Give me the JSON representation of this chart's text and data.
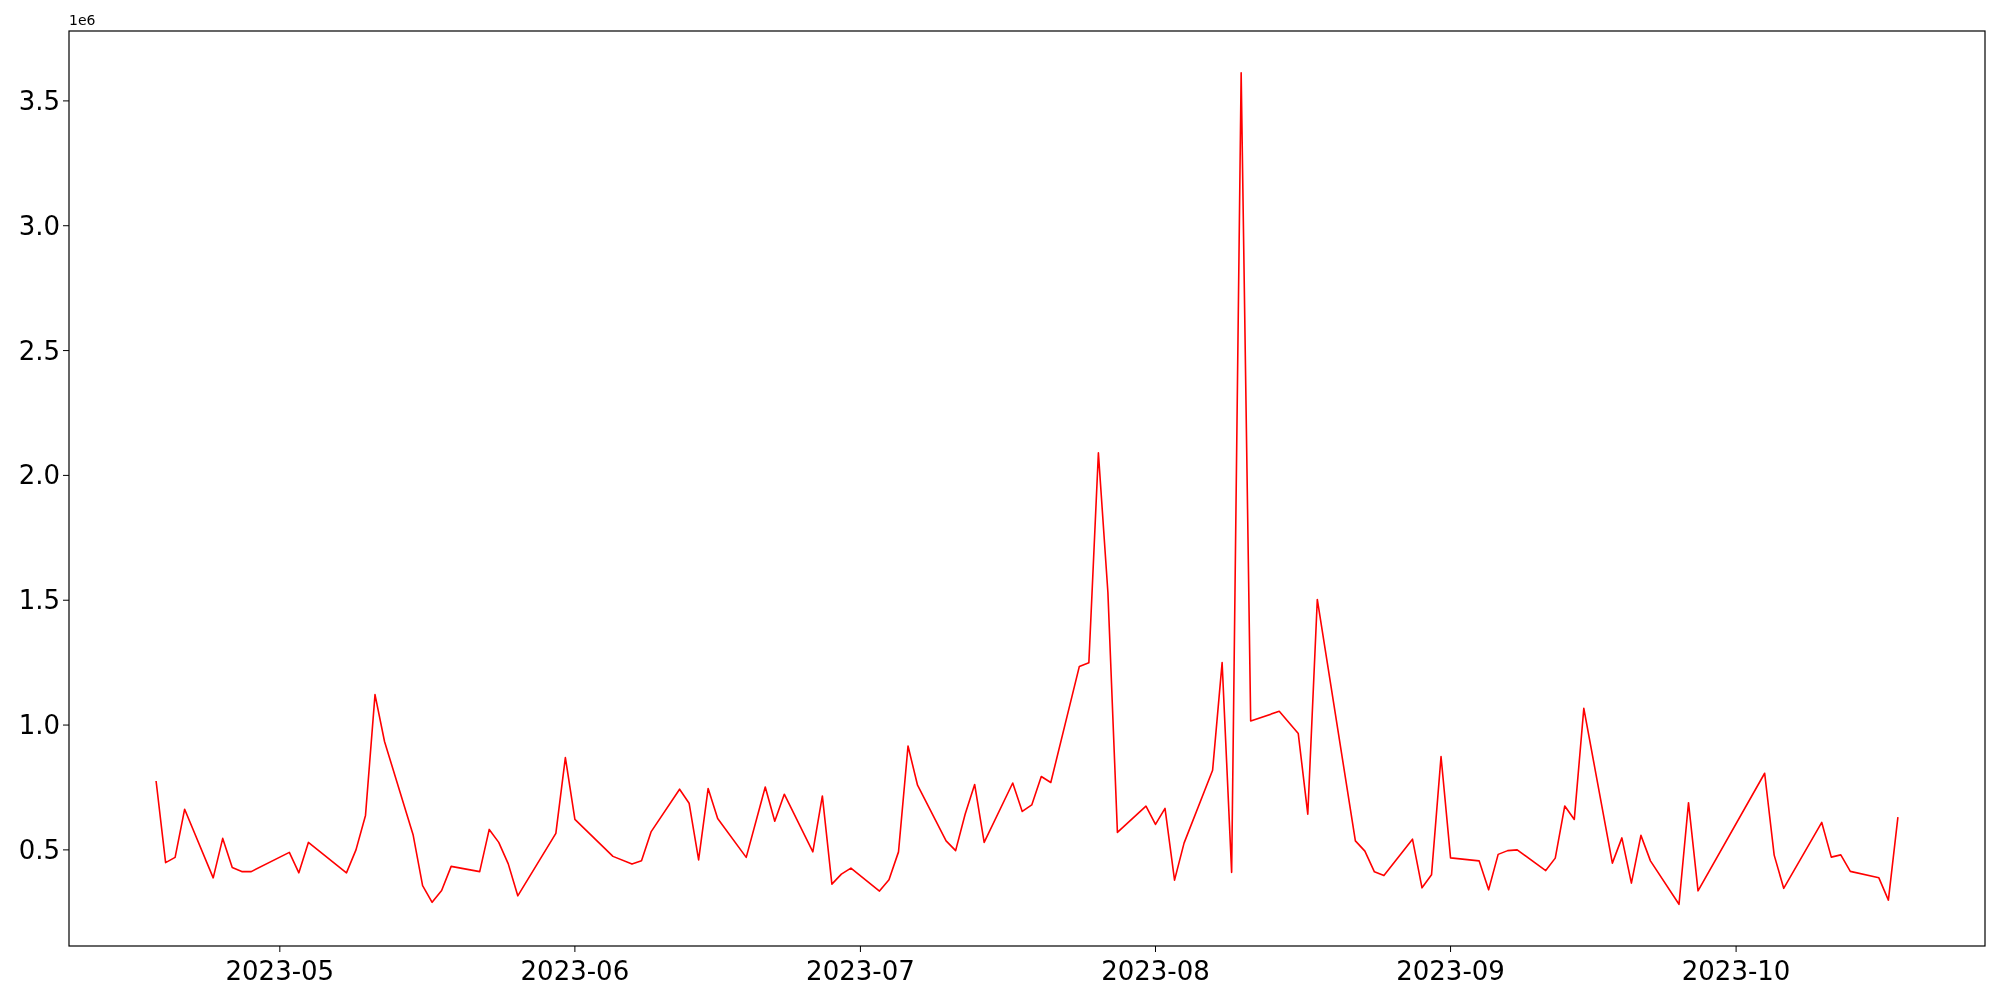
{
  "chart_data": {
    "type": "line",
    "annotations": [
      "1e6"
    ],
    "grid": false,
    "x": [
      "2023-04-18",
      "2023-04-19",
      "2023-04-20",
      "2023-04-21",
      "2023-04-24",
      "2023-04-25",
      "2023-04-26",
      "2023-04-27",
      "2023-04-28",
      "2023-05-02",
      "2023-05-03",
      "2023-05-04",
      "2023-05-08",
      "2023-05-09",
      "2023-05-10",
      "2023-05-11",
      "2023-05-12",
      "2023-05-15",
      "2023-05-16",
      "2023-05-17",
      "2023-05-18",
      "2023-05-19",
      "2023-05-22",
      "2023-05-23",
      "2023-05-24",
      "2023-05-25",
      "2023-05-26",
      "2023-05-30",
      "2023-05-31",
      "2023-06-01",
      "2023-06-05",
      "2023-06-07",
      "2023-06-08",
      "2023-06-09",
      "2023-06-12",
      "2023-06-13",
      "2023-06-14",
      "2023-06-15",
      "2023-06-16",
      "2023-06-19",
      "2023-06-21",
      "2023-06-22",
      "2023-06-23",
      "2023-06-26",
      "2023-06-27",
      "2023-06-28",
      "2023-06-29",
      "2023-06-30",
      "2023-07-03",
      "2023-07-04",
      "2023-07-05",
      "2023-07-06",
      "2023-07-07",
      "2023-07-10",
      "2023-07-11",
      "2023-07-12",
      "2023-07-13",
      "2023-07-14",
      "2023-07-17",
      "2023-07-18",
      "2023-07-19",
      "2023-07-20",
      "2023-07-21",
      "2023-07-24",
      "2023-07-25",
      "2023-07-26",
      "2023-07-27",
      "2023-07-28",
      "2023-07-31",
      "2023-08-01",
      "2023-08-02",
      "2023-08-03",
      "2023-08-04",
      "2023-08-07",
      "2023-08-08",
      "2023-08-09",
      "2023-08-10",
      "2023-08-11",
      "2023-08-14",
      "2023-08-16",
      "2023-08-17",
      "2023-08-18",
      "2023-08-22",
      "2023-08-23",
      "2023-08-24",
      "2023-08-25",
      "2023-08-28",
      "2023-08-29",
      "2023-08-30",
      "2023-08-31",
      "2023-09-01",
      "2023-09-04",
      "2023-09-05",
      "2023-09-06",
      "2023-09-07",
      "2023-09-08",
      "2023-09-11",
      "2023-09-12",
      "2023-09-13",
      "2023-09-14",
      "2023-09-15",
      "2023-09-18",
      "2023-09-19",
      "2023-09-20",
      "2023-09-21",
      "2023-09-22",
      "2023-09-25",
      "2023-09-26",
      "2023-09-27",
      "2023-10-04",
      "2023-10-05",
      "2023-10-06",
      "2023-10-10",
      "2023-10-11",
      "2023-10-12",
      "2023-10-13",
      "2023-10-16",
      "2023-10-17",
      "2023-10-18"
    ],
    "series": [
      {
        "color": "#ff0000",
        "values": [
          0.776,
          0.449,
          0.47,
          0.663,
          0.388,
          0.546,
          0.429,
          0.413,
          0.413,
          0.49,
          0.408,
          0.53,
          0.408,
          0.5,
          0.638,
          1.122,
          0.934,
          0.561,
          0.357,
          0.29,
          0.337,
          0.434,
          0.413,
          0.582,
          0.53,
          0.444,
          0.316,
          0.566,
          0.87,
          0.622,
          0.474,
          0.443,
          0.456,
          0.572,
          0.743,
          0.687,
          0.46,
          0.746,
          0.626,
          0.47,
          0.752,
          0.615,
          0.723,
          0.492,
          0.716,
          0.363,
          0.403,
          0.427,
          0.335,
          0.38,
          0.492,
          0.916,
          0.759,
          0.536,
          0.497,
          0.643,
          0.762,
          0.53,
          0.768,
          0.654,
          0.68,
          0.794,
          0.77,
          1.235,
          1.25,
          2.09,
          1.531,
          0.57,
          0.675,
          0.602,
          0.666,
          0.379,
          0.527,
          0.819,
          1.25,
          0.41,
          3.613,
          1.016,
          1.055,
          0.966,
          0.643,
          1.503,
          0.536,
          0.495,
          0.412,
          0.397,
          0.543,
          0.348,
          0.4,
          0.874,
          0.468,
          0.456,
          0.34,
          0.482,
          0.497,
          0.5,
          0.417,
          0.467,
          0.676,
          0.622,
          1.067,
          0.447,
          0.548,
          0.367,
          0.558,
          0.456,
          0.282,
          0.689,
          0.336,
          0.807,
          0.479,
          0.346,
          0.61,
          0.471,
          0.48,
          0.414,
          0.388,
          0.299,
          0.631
        ]
      }
    ],
    "xlim": [
      "2023-04-08T20:24",
      "2023-10-27T03:36"
    ],
    "xticks": [
      {
        "value": "2023-05-01",
        "label": "2023-05"
      },
      {
        "value": "2023-06-01",
        "label": "2023-06"
      },
      {
        "value": "2023-07-01",
        "label": "2023-07"
      },
      {
        "value": "2023-08-01",
        "label": "2023-08"
      },
      {
        "value": "2023-09-01",
        "label": "2023-09"
      },
      {
        "value": "2023-10-01",
        "label": "2023-10"
      }
    ],
    "ylim": [
      0.115,
      3.78
    ],
    "yticks": [
      {
        "value": 0.5,
        "label": "0.5"
      },
      {
        "value": 1,
        "label": "1.0"
      },
      {
        "value": 1.5,
        "label": "1.5"
      },
      {
        "value": 2,
        "label": "2.0"
      },
      {
        "value": 2.5,
        "label": "2.5"
      },
      {
        "value": 3,
        "label": "3.0"
      },
      {
        "value": 3.5,
        "label": "3.5"
      }
    ]
  }
}
